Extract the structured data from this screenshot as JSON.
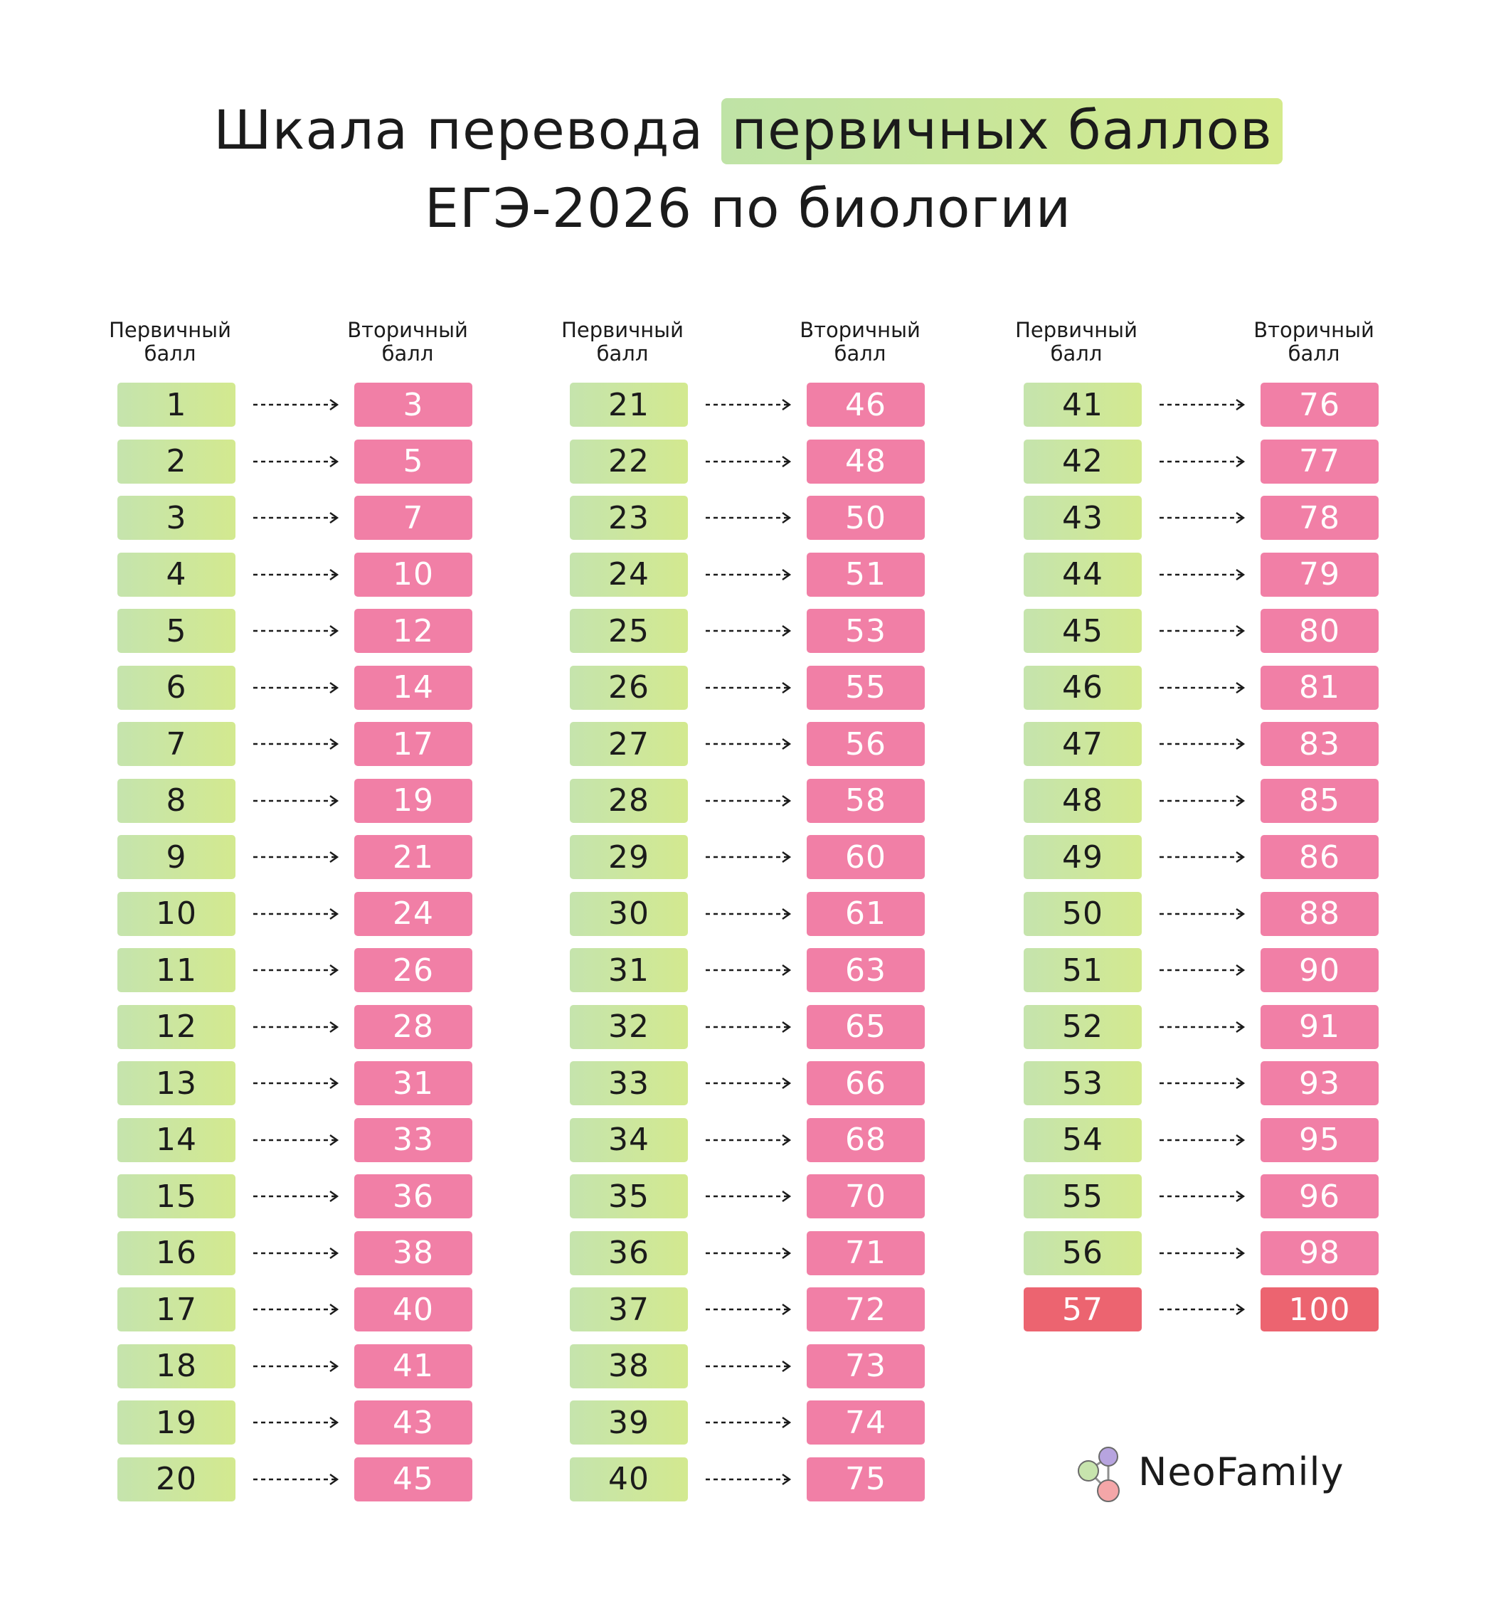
{
  "title": {
    "part1": "Шкала перевода ",
    "highlight": "первичных баллов",
    "line2": "ЕГЭ-2026 по биологии"
  },
  "headers": {
    "primary": "Первичный балл",
    "secondary": "Вторичный балл"
  },
  "colors": {
    "primary_box_start": "#c5e4ad",
    "primary_box_end": "#d3e98f",
    "secondary_box": "#f17fa6",
    "max_box": "#ec6470",
    "arrow": "#1b1b1b"
  },
  "table": {
    "columns": [
      {
        "rows": [
          {
            "primary": "1",
            "secondary": "3"
          },
          {
            "primary": "2",
            "secondary": "5"
          },
          {
            "primary": "3",
            "secondary": "7"
          },
          {
            "primary": "4",
            "secondary": "10"
          },
          {
            "primary": "5",
            "secondary": "12"
          },
          {
            "primary": "6",
            "secondary": "14"
          },
          {
            "primary": "7",
            "secondary": "17"
          },
          {
            "primary": "8",
            "secondary": "19"
          },
          {
            "primary": "9",
            "secondary": "21"
          },
          {
            "primary": "10",
            "secondary": "24"
          },
          {
            "primary": "11",
            "secondary": "26"
          },
          {
            "primary": "12",
            "secondary": "28"
          },
          {
            "primary": "13",
            "secondary": "31"
          },
          {
            "primary": "14",
            "secondary": "33"
          },
          {
            "primary": "15",
            "secondary": "36"
          },
          {
            "primary": "16",
            "secondary": "38"
          },
          {
            "primary": "17",
            "secondary": "40"
          },
          {
            "primary": "18",
            "secondary": "41"
          },
          {
            "primary": "19",
            "secondary": "43"
          },
          {
            "primary": "20",
            "secondary": "45"
          }
        ]
      },
      {
        "rows": [
          {
            "primary": "21",
            "secondary": "46"
          },
          {
            "primary": "22",
            "secondary": "48"
          },
          {
            "primary": "23",
            "secondary": "50"
          },
          {
            "primary": "24",
            "secondary": "51"
          },
          {
            "primary": "25",
            "secondary": "53"
          },
          {
            "primary": "26",
            "secondary": "55"
          },
          {
            "primary": "27",
            "secondary": "56"
          },
          {
            "primary": "28",
            "secondary": "58"
          },
          {
            "primary": "29",
            "secondary": "60"
          },
          {
            "primary": "30",
            "secondary": "61"
          },
          {
            "primary": "31",
            "secondary": "63"
          },
          {
            "primary": "32",
            "secondary": "65"
          },
          {
            "primary": "33",
            "secondary": "66"
          },
          {
            "primary": "34",
            "secondary": "68"
          },
          {
            "primary": "35",
            "secondary": "70"
          },
          {
            "primary": "36",
            "secondary": "71"
          },
          {
            "primary": "37",
            "secondary": "72"
          },
          {
            "primary": "38",
            "secondary": "73"
          },
          {
            "primary": "39",
            "secondary": "74"
          },
          {
            "primary": "40",
            "secondary": "75"
          }
        ]
      },
      {
        "rows": [
          {
            "primary": "41",
            "secondary": "76"
          },
          {
            "primary": "42",
            "secondary": "77"
          },
          {
            "primary": "43",
            "secondary": "78"
          },
          {
            "primary": "44",
            "secondary": "79"
          },
          {
            "primary": "45",
            "secondary": "80"
          },
          {
            "primary": "46",
            "secondary": "81"
          },
          {
            "primary": "47",
            "secondary": "83"
          },
          {
            "primary": "48",
            "secondary": "85"
          },
          {
            "primary": "49",
            "secondary": "86"
          },
          {
            "primary": "50",
            "secondary": "88"
          },
          {
            "primary": "51",
            "secondary": "90"
          },
          {
            "primary": "52",
            "secondary": "91"
          },
          {
            "primary": "53",
            "secondary": "93"
          },
          {
            "primary": "54",
            "secondary": "95"
          },
          {
            "primary": "55",
            "secondary": "96"
          },
          {
            "primary": "56",
            "secondary": "98"
          },
          {
            "primary": "57",
            "secondary": "100",
            "max": true
          }
        ]
      }
    ]
  },
  "logo": {
    "name": "NeoFamily",
    "icon": "molecule-logo-icon"
  }
}
